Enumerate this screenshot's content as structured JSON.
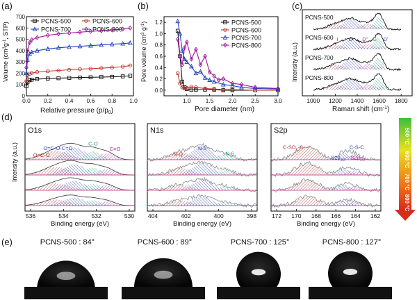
{
  "chart_data": [
    {
      "id": "a",
      "type": "line",
      "panel_label": "(a)",
      "xlabel": "Relative  pressure (p/p",
      "xlabel_sub": "0",
      "ylabel": "Volume (cm",
      "xlim": [
        0,
        1.0
      ],
      "ylim": [
        0,
        700
      ],
      "xticks": [
        "0.0",
        "0.2",
        "0.4",
        "0.6",
        "0.8",
        "1.0"
      ],
      "yticks": [
        "0",
        "100",
        "200",
        "300",
        "400",
        "500",
        "600",
        "700"
      ],
      "series": [
        {
          "name": "PCNS-500",
          "color": "#111111",
          "marker": "square",
          "x": [
            0.0,
            0.01,
            0.03,
            0.05,
            0.1,
            0.2,
            0.3,
            0.4,
            0.5,
            0.6,
            0.7,
            0.8,
            0.9,
            0.97
          ],
          "y": [
            85,
            120,
            138,
            143,
            148,
            153,
            156,
            159,
            162,
            164,
            166,
            168,
            172,
            178
          ]
        },
        {
          "name": "PCNS-600",
          "color": "#c0392b",
          "marker": "circle",
          "x": [
            0.0,
            0.01,
            0.03,
            0.05,
            0.1,
            0.2,
            0.3,
            0.4,
            0.5,
            0.6,
            0.7,
            0.8,
            0.9,
            0.97
          ],
          "y": [
            130,
            175,
            195,
            202,
            210,
            218,
            224,
            230,
            236,
            240,
            245,
            250,
            258,
            268
          ]
        },
        {
          "name": "PCNS-700",
          "color": "#1f3fbf",
          "marker": "triangle",
          "x": [
            0.0,
            0.01,
            0.03,
            0.05,
            0.1,
            0.2,
            0.3,
            0.4,
            0.5,
            0.6,
            0.7,
            0.8,
            0.9,
            0.97
          ],
          "y": [
            200,
            320,
            370,
            385,
            400,
            415,
            425,
            432,
            438,
            444,
            450,
            456,
            462,
            468
          ]
        },
        {
          "name": "PCNS-800",
          "color": "#a0169a",
          "marker": "diamond",
          "x": [
            0.0,
            0.01,
            0.03,
            0.05,
            0.1,
            0.2,
            0.3,
            0.4,
            0.5,
            0.6,
            0.7,
            0.8,
            0.9,
            0.97
          ],
          "y": [
            250,
            400,
            470,
            495,
            515,
            535,
            548,
            556,
            563,
            570,
            576,
            582,
            590,
            600
          ]
        }
      ]
    },
    {
      "id": "b",
      "type": "line",
      "panel_label": "(b)",
      "xlabel": "Pore diameter (nm)",
      "ylabel": "Pore volume (cm",
      "xlim": [
        0.5,
        3.0
      ],
      "ylim": [
        -0.1,
        1.3
      ],
      "xticks": [
        "1.0",
        "1.5",
        "2.0",
        "2.5",
        "3.0"
      ],
      "yticks": [
        "0.0",
        "0.2",
        "0.4",
        "0.6",
        "0.8",
        "1.0",
        "1.2"
      ],
      "series": [
        {
          "name": "PCNS-500",
          "color": "#111111",
          "marker": "square",
          "x": [
            0.8,
            0.85,
            0.9,
            0.95,
            1.0,
            1.1,
            1.2,
            1.4,
            1.6,
            1.8,
            2.0,
            2.5,
            3.0
          ],
          "y": [
            1.05,
            0.6,
            0.15,
            0.05,
            0.02,
            0.01,
            0.01,
            0.01,
            0.01,
            0.0,
            0.0,
            0.0,
            0.0
          ]
        },
        {
          "name": "PCNS-600",
          "color": "#c0392b",
          "marker": "circle",
          "x": [
            0.8,
            0.85,
            0.9,
            0.95,
            1.0,
            1.1,
            1.2,
            1.4,
            1.6,
            1.8,
            2.0,
            2.5,
            3.0
          ],
          "y": [
            0.3,
            0.12,
            0.05,
            0.03,
            0.04,
            0.06,
            0.05,
            0.03,
            0.02,
            0.01,
            0.01,
            0.0,
            0.0
          ]
        },
        {
          "name": "PCNS-700",
          "color": "#1f3fbf",
          "marker": "triangle",
          "x": [
            0.8,
            0.85,
            0.9,
            0.95,
            1.0,
            1.1,
            1.2,
            1.3,
            1.4,
            1.5,
            1.6,
            1.8,
            2.0,
            2.2,
            2.5,
            3.0
          ],
          "y": [
            1.22,
            1.0,
            0.7,
            0.55,
            0.5,
            0.42,
            0.3,
            0.33,
            0.22,
            0.18,
            0.15,
            0.1,
            0.08,
            0.05,
            0.03,
            0.02
          ]
        },
        {
          "name": "PCNS-800",
          "color": "#a0169a",
          "marker": "diamond",
          "x": [
            0.8,
            0.85,
            0.9,
            0.95,
            1.0,
            1.1,
            1.2,
            1.3,
            1.4,
            1.5,
            1.6,
            1.7,
            1.8,
            2.0,
            2.2,
            2.5,
            3.0
          ],
          "y": [
            0.9,
            0.6,
            0.45,
            0.75,
            0.85,
            0.55,
            0.72,
            0.45,
            0.6,
            0.32,
            0.25,
            0.18,
            0.2,
            0.12,
            0.1,
            0.05,
            0.03
          ]
        }
      ]
    },
    {
      "id": "c",
      "type": "line",
      "panel_label": "(c)",
      "xlabel": "Raman shift (cm",
      "ylabel": "Intensity (a.u.)",
      "xlim": [
        900,
        1900
      ],
      "xticks": [
        "1000",
        "1200",
        "1400",
        "1600",
        "1800"
      ],
      "series": [
        {
          "name": "PCNS-500",
          "color": "#111111"
        },
        {
          "name": "PCNS-600",
          "color": "#111111"
        },
        {
          "name": "PCNS-700",
          "color": "#111111"
        },
        {
          "name": "PCNS-800",
          "color": "#111111"
        }
      ],
      "peak_labels": [
        "I",
        "D",
        "D\"",
        "G",
        "D'"
      ]
    },
    {
      "id": "d",
      "type": "line",
      "panel_label": "(d)",
      "subpanels": [
        {
          "title": "O1s",
          "xticks": [
            "536",
            "534",
            "532",
            "530"
          ],
          "xlabel": "Binding energy (eV)",
          "labels": [
            "O=C-O-C=O",
            "C-O",
            "C=O",
            "O=C-O"
          ]
        },
        {
          "title": "N1s",
          "xticks": [
            "404",
            "402",
            "400",
            "398"
          ],
          "xlabel": "Binding energy (eV)",
          "labels": [
            "N-5",
            "N-Q",
            "N-6"
          ]
        },
        {
          "title": "S2p",
          "xticks": [
            "172",
            "170",
            "168",
            "166",
            "164",
            "162"
          ],
          "xlabel": "Binding energy (eV)",
          "labels": [
            "C-SO",
            "C-S-C",
            "S2p",
            "S2p"
          ]
        }
      ],
      "ylabel": "Intensity (a.u.)",
      "temperature_scale": [
        "500 °C",
        "600 °C",
        "700 °C",
        "800 °C"
      ]
    }
  ],
  "panel_e": {
    "label": "(e)",
    "droplets": [
      {
        "caption": "PCNS-500 : 84°",
        "angle_deg": 84
      },
      {
        "caption": "PCNS-600 : 89°",
        "angle_deg": 89
      },
      {
        "caption": "PCNS-700 : 125°",
        "angle_deg": 125
      },
      {
        "caption": "PCNS-800 : 127°",
        "angle_deg": 127
      }
    ]
  }
}
